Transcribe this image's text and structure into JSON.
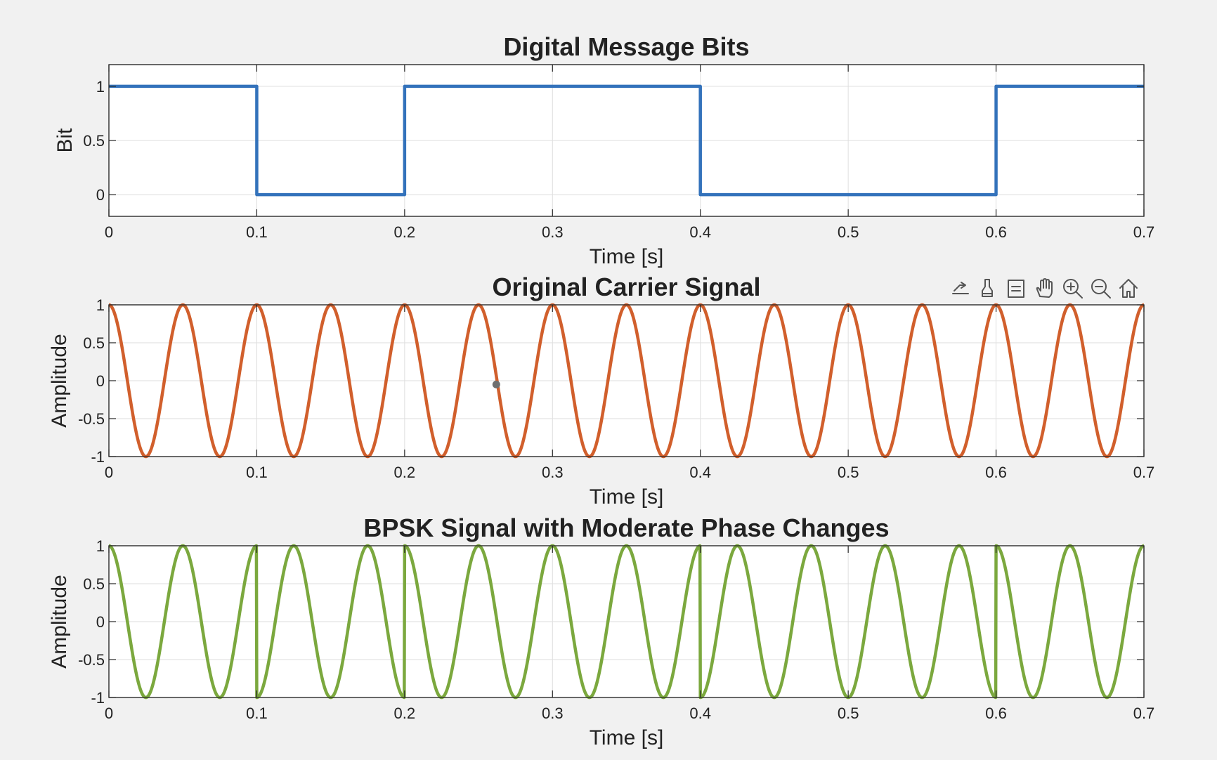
{
  "figure": {
    "background": "#f1f1f1"
  },
  "axes_toolbar": {
    "icons": [
      "export-icon",
      "brush-icon",
      "datatip-icon",
      "pan-icon",
      "zoom-in-icon",
      "zoom-out-icon",
      "home-icon"
    ]
  },
  "chart_data": [
    {
      "type": "line",
      "title": "Digital Message Bits",
      "xlabel": "Time [s]",
      "ylabel": "Bit",
      "xlim": [
        0,
        0.7
      ],
      "ylim": [
        -0.2,
        1.2
      ],
      "xticks": [
        "0",
        "0.1",
        "0.2",
        "0.3",
        "0.4",
        "0.5",
        "0.6",
        "0.7"
      ],
      "yticks": [
        "0",
        "0.5",
        "1"
      ],
      "grid": true,
      "color": "#3372bb",
      "step": true,
      "bits": [
        1,
        0,
        1,
        1,
        0,
        0,
        1
      ],
      "bit_duration": 0.1
    },
    {
      "type": "line",
      "title": "Original Carrier Signal",
      "xlabel": "Time [s]",
      "ylabel": "Amplitude",
      "xlim": [
        0,
        0.7
      ],
      "ylim": [
        -1,
        1
      ],
      "xticks": [
        "0",
        "0.1",
        "0.2",
        "0.3",
        "0.4",
        "0.5",
        "0.6",
        "0.7"
      ],
      "yticks": [
        "-1",
        "-0.5",
        "0",
        "0.5",
        "1"
      ],
      "grid": true,
      "color": "#d15f2c",
      "function": "cos(2*pi*f*t)",
      "carrier_frequency_hz": 20,
      "marker_point": {
        "x": 0.262,
        "y": -0.05
      }
    },
    {
      "type": "line",
      "title": "BPSK Signal with Moderate Phase Changes",
      "xlabel": "Time [s]",
      "ylabel": "Amplitude",
      "xlim": [
        0,
        0.7
      ],
      "ylim": [
        -1,
        1
      ],
      "xticks": [
        "0",
        "0.1",
        "0.2",
        "0.3",
        "0.4",
        "0.5",
        "0.6",
        "0.7"
      ],
      "yticks": [
        "-1",
        "-0.5",
        "0",
        "0.5",
        "1"
      ],
      "grid": true,
      "color": "#7ba83e",
      "function": "cos(2*pi*f*t + phase)",
      "carrier_frequency_hz": 20,
      "bits": [
        1,
        0,
        1,
        1,
        0,
        0,
        1
      ],
      "bit_duration": 0.1,
      "phase_for_bit_1": 0,
      "phase_for_bit_0": 3.14159
    }
  ]
}
